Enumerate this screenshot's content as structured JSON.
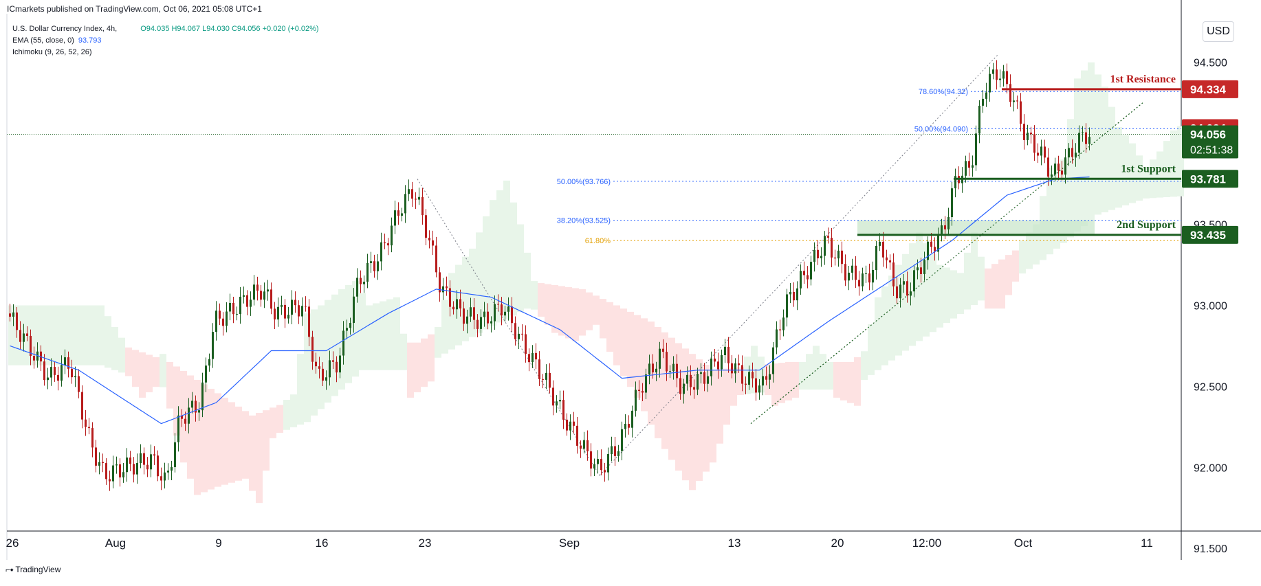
{
  "header": {
    "published": "ICmarkets published on TradingView.com, Oct 06, 2021 05:08 UTC+1"
  },
  "legend": {
    "symbol": "U.S. Dollar Currency Index, 4h,",
    "ohlc": "O94.035  H94.067  L94.030  C94.056  +0.020 (+0.02%)",
    "ema_label": "EMA (55, close, 0)",
    "ema_value": "93.793",
    "ichimoku_label": "Ichimoku (9, 26, 52, 26)"
  },
  "currency_button": "USD",
  "footer": {
    "brand": "TradingView"
  },
  "chart_data": {
    "type": "candlestick",
    "title": "",
    "ylim": [
      91.45,
      94.8
    ],
    "y_ticks": [
      91.5,
      92.0,
      92.5,
      93.0,
      93.5,
      94.5
    ],
    "y_tick_labels": [
      "91.500",
      "92.000",
      "92.500",
      "93.000",
      "93.500",
      "94.500"
    ],
    "x_ticks": [
      {
        "label": "26",
        "bar": 0
      },
      {
        "label": "Aug",
        "bar": 30
      },
      {
        "label": "9",
        "bar": 60
      },
      {
        "label": "16",
        "bar": 90
      },
      {
        "label": "23",
        "bar": 120
      },
      {
        "label": "Sep",
        "bar": 162
      },
      {
        "label": "13",
        "bar": 210
      },
      {
        "label": "20",
        "bar": 240
      },
      {
        "label": "12:00",
        "bar": 266
      },
      {
        "label": "Oct",
        "bar": 294
      },
      {
        "label": "11",
        "bar": 330
      }
    ],
    "price_path": [
      {
        "bar": 0,
        "price": 92.95
      },
      {
        "bar": 6,
        "price": 92.75
      },
      {
        "bar": 12,
        "price": 92.55
      },
      {
        "bar": 18,
        "price": 92.65
      },
      {
        "bar": 24,
        "price": 92.15
      },
      {
        "bar": 28,
        "price": 91.95
      },
      {
        "bar": 34,
        "price": 92.0
      },
      {
        "bar": 42,
        "price": 92.05
      },
      {
        "bar": 46,
        "price": 91.9
      },
      {
        "bar": 50,
        "price": 92.3
      },
      {
        "bar": 56,
        "price": 92.4
      },
      {
        "bar": 60,
        "price": 92.9
      },
      {
        "bar": 64,
        "price": 92.95
      },
      {
        "bar": 70,
        "price": 93.05
      },
      {
        "bar": 74,
        "price": 93.1
      },
      {
        "bar": 78,
        "price": 92.95
      },
      {
        "bar": 86,
        "price": 93.0
      },
      {
        "bar": 90,
        "price": 92.55
      },
      {
        "bar": 96,
        "price": 92.65
      },
      {
        "bar": 102,
        "price": 93.15
      },
      {
        "bar": 108,
        "price": 93.3
      },
      {
        "bar": 114,
        "price": 93.6
      },
      {
        "bar": 118,
        "price": 93.72
      },
      {
        "bar": 122,
        "price": 93.45
      },
      {
        "bar": 126,
        "price": 93.1
      },
      {
        "bar": 132,
        "price": 92.95
      },
      {
        "bar": 138,
        "price": 92.9
      },
      {
        "bar": 144,
        "price": 93.0
      },
      {
        "bar": 150,
        "price": 92.75
      },
      {
        "bar": 156,
        "price": 92.55
      },
      {
        "bar": 162,
        "price": 92.3
      },
      {
        "bar": 168,
        "price": 92.1
      },
      {
        "bar": 172,
        "price": 91.98
      },
      {
        "bar": 178,
        "price": 92.15
      },
      {
        "bar": 184,
        "price": 92.5
      },
      {
        "bar": 190,
        "price": 92.7
      },
      {
        "bar": 196,
        "price": 92.5
      },
      {
        "bar": 202,
        "price": 92.55
      },
      {
        "bar": 208,
        "price": 92.7
      },
      {
        "bar": 214,
        "price": 92.55
      },
      {
        "bar": 220,
        "price": 92.5
      },
      {
        "bar": 226,
        "price": 93.0
      },
      {
        "bar": 232,
        "price": 93.2
      },
      {
        "bar": 238,
        "price": 93.4
      },
      {
        "bar": 244,
        "price": 93.2
      },
      {
        "bar": 250,
        "price": 93.15
      },
      {
        "bar": 254,
        "price": 93.4
      },
      {
        "bar": 258,
        "price": 93.1
      },
      {
        "bar": 262,
        "price": 93.1
      },
      {
        "bar": 268,
        "price": 93.35
      },
      {
        "bar": 272,
        "price": 93.45
      },
      {
        "bar": 276,
        "price": 93.8
      },
      {
        "bar": 280,
        "price": 93.85
      },
      {
        "bar": 284,
        "price": 94.35
      },
      {
        "bar": 288,
        "price": 94.45
      },
      {
        "bar": 292,
        "price": 94.3
      },
      {
        "bar": 296,
        "price": 94.05
      },
      {
        "bar": 300,
        "price": 93.95
      },
      {
        "bar": 304,
        "price": 93.8
      },
      {
        "bar": 308,
        "price": 93.9
      },
      {
        "bar": 312,
        "price": 94.03
      },
      {
        "bar": 314,
        "price": 94.056
      }
    ],
    "ema_path": [
      {
        "bar": 0,
        "price": 92.75
      },
      {
        "bar": 20,
        "price": 92.6
      },
      {
        "bar": 44,
        "price": 92.27
      },
      {
        "bar": 60,
        "price": 92.4
      },
      {
        "bar": 76,
        "price": 92.72
      },
      {
        "bar": 92,
        "price": 92.72
      },
      {
        "bar": 110,
        "price": 92.95
      },
      {
        "bar": 124,
        "price": 93.1
      },
      {
        "bar": 140,
        "price": 93.05
      },
      {
        "bar": 160,
        "price": 92.85
      },
      {
        "bar": 178,
        "price": 92.55
      },
      {
        "bar": 200,
        "price": 92.6
      },
      {
        "bar": 218,
        "price": 92.6
      },
      {
        "bar": 238,
        "price": 92.9
      },
      {
        "bar": 256,
        "price": 93.15
      },
      {
        "bar": 274,
        "price": 93.4
      },
      {
        "bar": 290,
        "price": 93.68
      },
      {
        "bar": 304,
        "price": 93.78
      },
      {
        "bar": 314,
        "price": 93.793
      }
    ],
    "horizontal_levels": [
      {
        "label": "1st Resistance",
        "price": 94.334,
        "color": "#b71c1c"
      },
      {
        "label": "1st Support",
        "price": 93.781,
        "color": "#1b5e20"
      },
      {
        "label": "2nd Support",
        "price": 93.435,
        "color": "#1b5e20"
      }
    ],
    "fib_levels": [
      {
        "label": "78.60%(94.32)",
        "price": 94.32,
        "color": "#2962ff"
      },
      {
        "label": "50.00%(94.090)",
        "price": 94.09,
        "color": "#2962ff"
      },
      {
        "label": "50.00%(93.766)",
        "price": 93.766,
        "color": "#2962ff"
      },
      {
        "label": "38.20%(93.525)",
        "price": 93.525,
        "color": "#2962ff"
      },
      {
        "label": "61.80%",
        "price": 93.4,
        "color": "#e39f00"
      }
    ],
    "price_labels": [
      {
        "text": "94.334",
        "price": 94.334,
        "color": "#c62828"
      },
      {
        "text": "94.094",
        "price": 94.094,
        "color": "#c62828"
      },
      {
        "text": "94.056",
        "sub": "02:51:38",
        "price": 94.056,
        "color": "#1b5e20"
      },
      {
        "text": "93.781",
        "price": 93.781,
        "color": "#1b5e20"
      },
      {
        "text": "93.435",
        "price": 93.435,
        "color": "#1b5e20"
      }
    ],
    "last_price": 94.056,
    "colors": {
      "up": "#1b5e20",
      "down": "#b71c1c",
      "ema": "#2962ff",
      "cloud_bull": "#e8f5e9",
      "cloud_bear": "#fde2e2",
      "support_zone": "#c8e6c9"
    },
    "grid": false
  }
}
